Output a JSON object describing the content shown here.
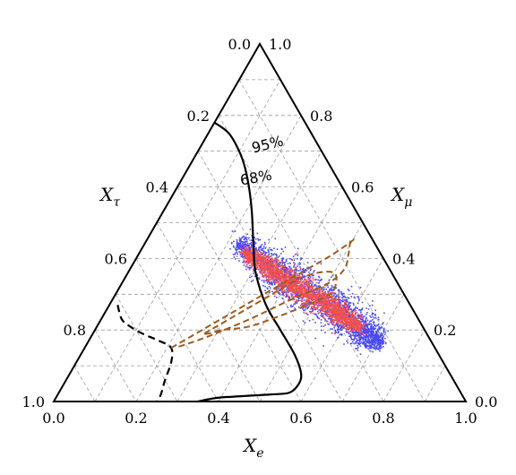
{
  "chart_data": {
    "type": "scatter",
    "subtype": "ternary",
    "axes": {
      "bottom": {
        "label_main": "X",
        "label_sub": "e",
        "ticks": [
          "0.0",
          "0.2",
          "0.4",
          "0.6",
          "0.8",
          "1.0"
        ]
      },
      "right": {
        "label_main": "X",
        "label_sub": "μ",
        "ticks": [
          "0.0",
          "0.2",
          "0.4",
          "0.6",
          "0.8",
          "1.0"
        ]
      },
      "left": {
        "label_main": "X",
        "label_sub": "τ",
        "ticks": [
          "0.0",
          "0.2",
          "0.4",
          "0.6",
          "0.8",
          "1.0"
        ]
      }
    },
    "grid": true,
    "grid_step": 0.1,
    "contour_labels": [
      "95%",
      "68%"
    ],
    "series": [
      {
        "kind": "scatter-blue",
        "color": "#4a4aef",
        "spine": [
          [
            0.22,
            0.45,
            0.33
          ],
          [
            0.33,
            0.38,
            0.29
          ],
          [
            0.44,
            0.32,
            0.24
          ],
          [
            0.55,
            0.26,
            0.19
          ],
          [
            0.64,
            0.21,
            0.15
          ],
          [
            0.71,
            0.16,
            0.13
          ]
        ],
        "half_width_e": 0.05
      },
      {
        "kind": "scatter-red",
        "color": "#f25050",
        "spine": [
          [
            0.25,
            0.42,
            0.33
          ],
          [
            0.35,
            0.365,
            0.285
          ],
          [
            0.45,
            0.31,
            0.24
          ],
          [
            0.55,
            0.26,
            0.19
          ],
          [
            0.64,
            0.205,
            0.155
          ]
        ],
        "half_width_e": 0.03
      },
      {
        "kind": "contour-68",
        "style": "solid",
        "color": "#000000",
        "points": [
          [
            0.0,
            0.78,
            0.22
          ],
          [
            0.05,
            0.75,
            0.2
          ],
          [
            0.1,
            0.7,
            0.2
          ],
          [
            0.14,
            0.65,
            0.21
          ],
          [
            0.18,
            0.59,
            0.23
          ],
          [
            0.21,
            0.54,
            0.25
          ],
          [
            0.235,
            0.495,
            0.27
          ],
          [
            0.27,
            0.43,
            0.3
          ],
          [
            0.31,
            0.36,
            0.33
          ],
          [
            0.38,
            0.27,
            0.35
          ],
          [
            0.45,
            0.2,
            0.35
          ],
          [
            0.52,
            0.13,
            0.35
          ],
          [
            0.56,
            0.08,
            0.36
          ],
          [
            0.57,
            0.05,
            0.38
          ],
          [
            0.56,
            0.025,
            0.415
          ],
          [
            0.52,
            0.02,
            0.46
          ],
          [
            0.45,
            0.015,
            0.535
          ],
          [
            0.39,
            0.01,
            0.6
          ],
          [
            0.35,
            0.0,
            0.65
          ]
        ]
      },
      {
        "kind": "contour-95",
        "style": "dashed",
        "color": "#000000",
        "points": [
          [
            0.02,
            0.27,
            0.71
          ],
          [
            0.05,
            0.23,
            0.72
          ],
          [
            0.08,
            0.21,
            0.71
          ],
          [
            0.12,
            0.19,
            0.69
          ],
          [
            0.17,
            0.17,
            0.66
          ],
          [
            0.21,
            0.15,
            0.64
          ],
          [
            0.23,
            0.11,
            0.66
          ],
          [
            0.24,
            0.06,
            0.7
          ],
          [
            0.25,
            0.02,
            0.73
          ],
          [
            0.25,
            0.0,
            0.75
          ]
        ]
      },
      {
        "kind": "brown-inner",
        "style": "dashed",
        "color": "#9a5c22",
        "points": [
          [
            0.27,
            0.19,
            0.54
          ],
          [
            0.33,
            0.25,
            0.42
          ],
          [
            0.38,
            0.3,
            0.32
          ],
          [
            0.42,
            0.34,
            0.24
          ],
          [
            0.46,
            0.36,
            0.18
          ],
          [
            0.5,
            0.36,
            0.14
          ],
          [
            0.52,
            0.33,
            0.15
          ],
          [
            0.52,
            0.3,
            0.18
          ],
          [
            0.48,
            0.27,
            0.25
          ],
          [
            0.43,
            0.24,
            0.33
          ],
          [
            0.37,
            0.21,
            0.42
          ],
          [
            0.31,
            0.2,
            0.49
          ],
          [
            0.28,
            0.19,
            0.53
          ],
          [
            0.27,
            0.19,
            0.54
          ]
        ]
      },
      {
        "kind": "brown-outer",
        "style": "dashed",
        "color": "#9a5c22",
        "points": [
          [
            0.21,
            0.15,
            0.64
          ],
          [
            0.26,
            0.2,
            0.54
          ],
          [
            0.31,
            0.25,
            0.44
          ],
          [
            0.37,
            0.31,
            0.32
          ],
          [
            0.43,
            0.37,
            0.2
          ],
          [
            0.47,
            0.41,
            0.12
          ],
          [
            0.5,
            0.45,
            0.05
          ],
          [
            0.495,
            0.45,
            0.055
          ],
          [
            0.51,
            0.41,
            0.08
          ],
          [
            0.52,
            0.37,
            0.11
          ],
          [
            0.5,
            0.33,
            0.17
          ],
          [
            0.44,
            0.29,
            0.27
          ],
          [
            0.36,
            0.23,
            0.41
          ],
          [
            0.28,
            0.18,
            0.54
          ],
          [
            0.22,
            0.15,
            0.63
          ]
        ]
      }
    ]
  }
}
